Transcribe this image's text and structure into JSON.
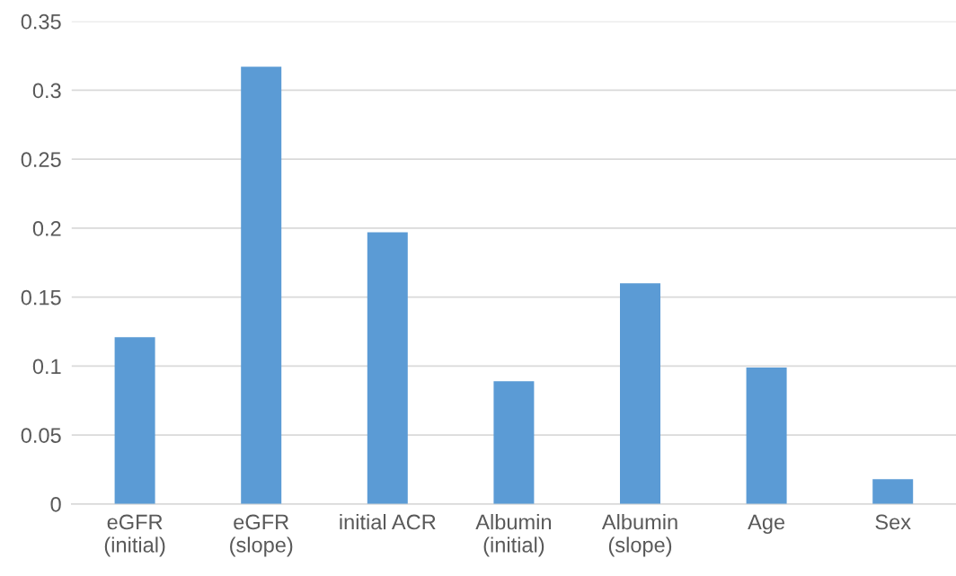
{
  "chart_data": {
    "type": "bar",
    "categories": [
      "eGFR\n(initial)",
      "eGFR\n(slope)",
      "initial ACR",
      "Albumin\n(initial)",
      "Albumin\n(slope)",
      "Age",
      "Sex"
    ],
    "values": [
      0.121,
      0.317,
      0.197,
      0.089,
      0.16,
      0.099,
      0.018
    ],
    "color": "#5b9bd5",
    "ylim": [
      0,
      0.35
    ],
    "yticks": [
      0,
      0.05,
      0.1,
      0.15,
      0.2,
      0.25,
      0.3,
      0.35
    ],
    "grid": "y",
    "legend": false
  }
}
